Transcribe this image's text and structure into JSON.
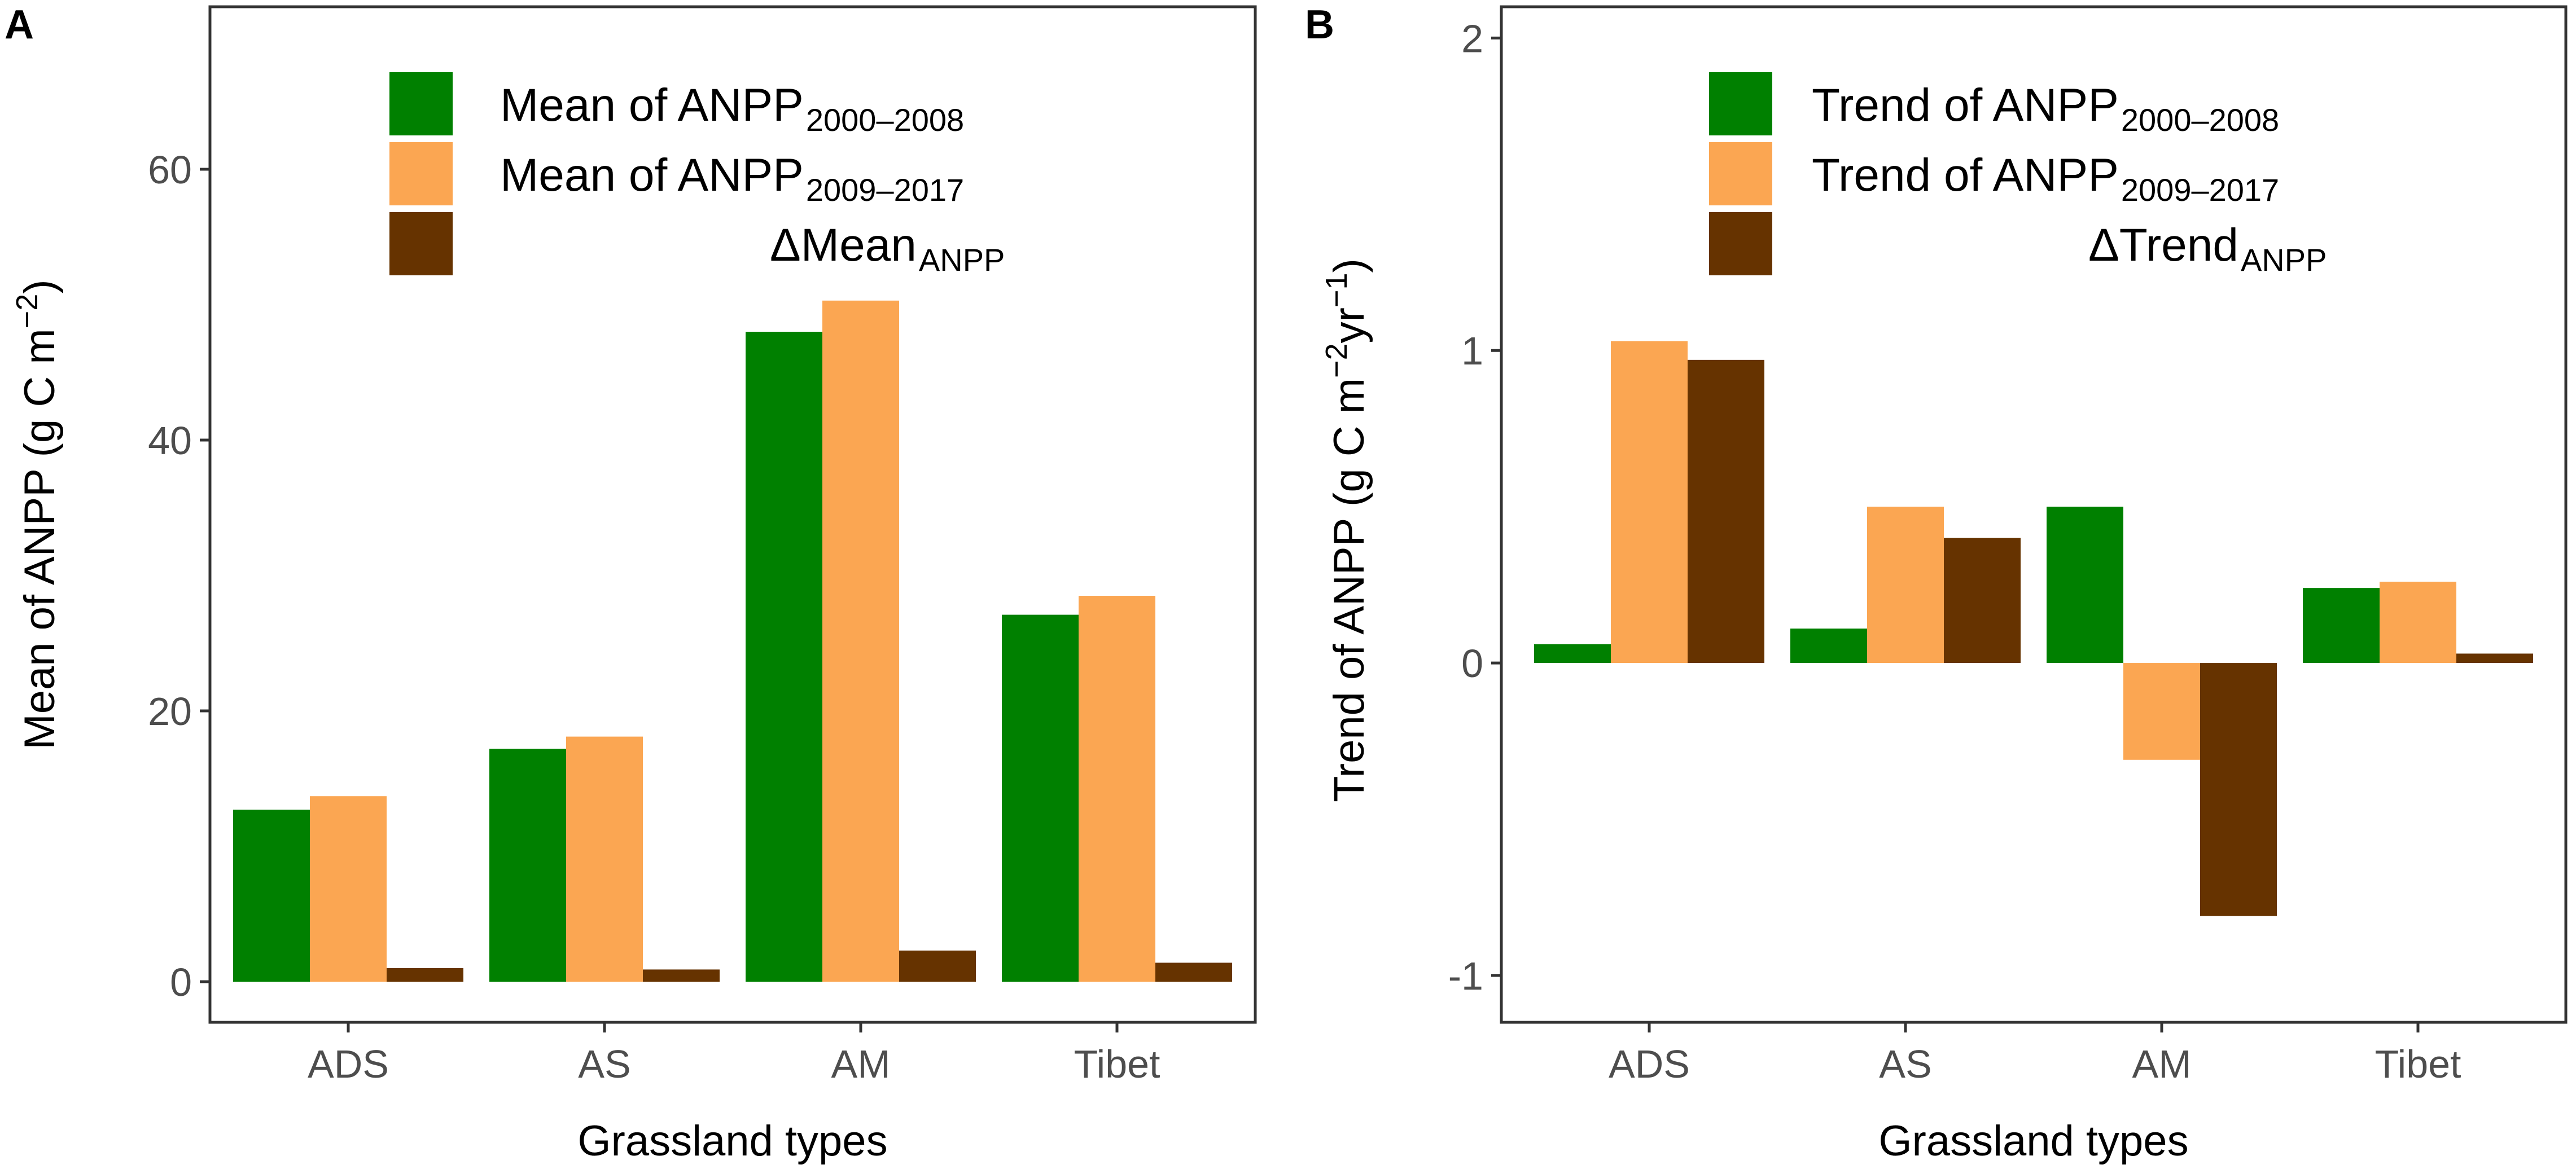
{
  "palette": {
    "first": "#008000",
    "second": "#fba652",
    "delta": "#663300",
    "frame": "#333333",
    "tick_text": "#4d4d4d"
  },
  "chart_data": [
    {
      "panel": "A",
      "type": "bar",
      "xlabel": "Grassland types",
      "ylabel": "Mean of ANPP (g C m",
      "ylabel_sup": "−2",
      "ylabel_close": ")",
      "categories": [
        "ADS",
        "AS",
        "AM",
        "Tibet"
      ],
      "ylim": [
        -3,
        72
      ],
      "yticks": [
        0,
        20,
        40,
        60
      ],
      "ytick_labels": [
        "0",
        "20",
        "40",
        "60"
      ],
      "series": [
        {
          "main": "Mean of ANPP",
          "sub": "2000–2008",
          "values": [
            12.7,
            17.2,
            48.0,
            27.1
          ]
        },
        {
          "main": "Mean of ANPP",
          "sub": "2009–2017",
          "values": [
            13.7,
            18.1,
            50.3,
            28.5
          ]
        },
        {
          "main": "ΔMean",
          "sub": "ANPP",
          "values": [
            1.0,
            0.9,
            2.3,
            1.4
          ]
        }
      ]
    },
    {
      "panel": "B",
      "type": "bar",
      "xlabel": "Grassland types",
      "ylabel": "Trend of ANPP (g C m",
      "ylabel_sup1": "−2",
      "ylabel_mid": "yr",
      "ylabel_sup2": "−1",
      "ylabel_close": ")",
      "categories": [
        "ADS",
        "AS",
        "AM",
        "Tibet"
      ],
      "ylim": [
        -1.15,
        2.1
      ],
      "yticks": [
        -1,
        0,
        1,
        2
      ],
      "ytick_labels": [
        "-1",
        "0",
        "1",
        "2"
      ],
      "series": [
        {
          "main": "Trend of ANPP",
          "sub": "2000–2008",
          "values": [
            0.06,
            0.11,
            0.5,
            0.24
          ]
        },
        {
          "main": "Trend of ANPP",
          "sub": "2009–2017",
          "values": [
            1.03,
            0.5,
            -0.31,
            0.26
          ]
        },
        {
          "main": "ΔTrend",
          "sub": "ANPP",
          "values": [
            0.97,
            0.4,
            -0.81,
            0.03
          ]
        }
      ]
    }
  ]
}
